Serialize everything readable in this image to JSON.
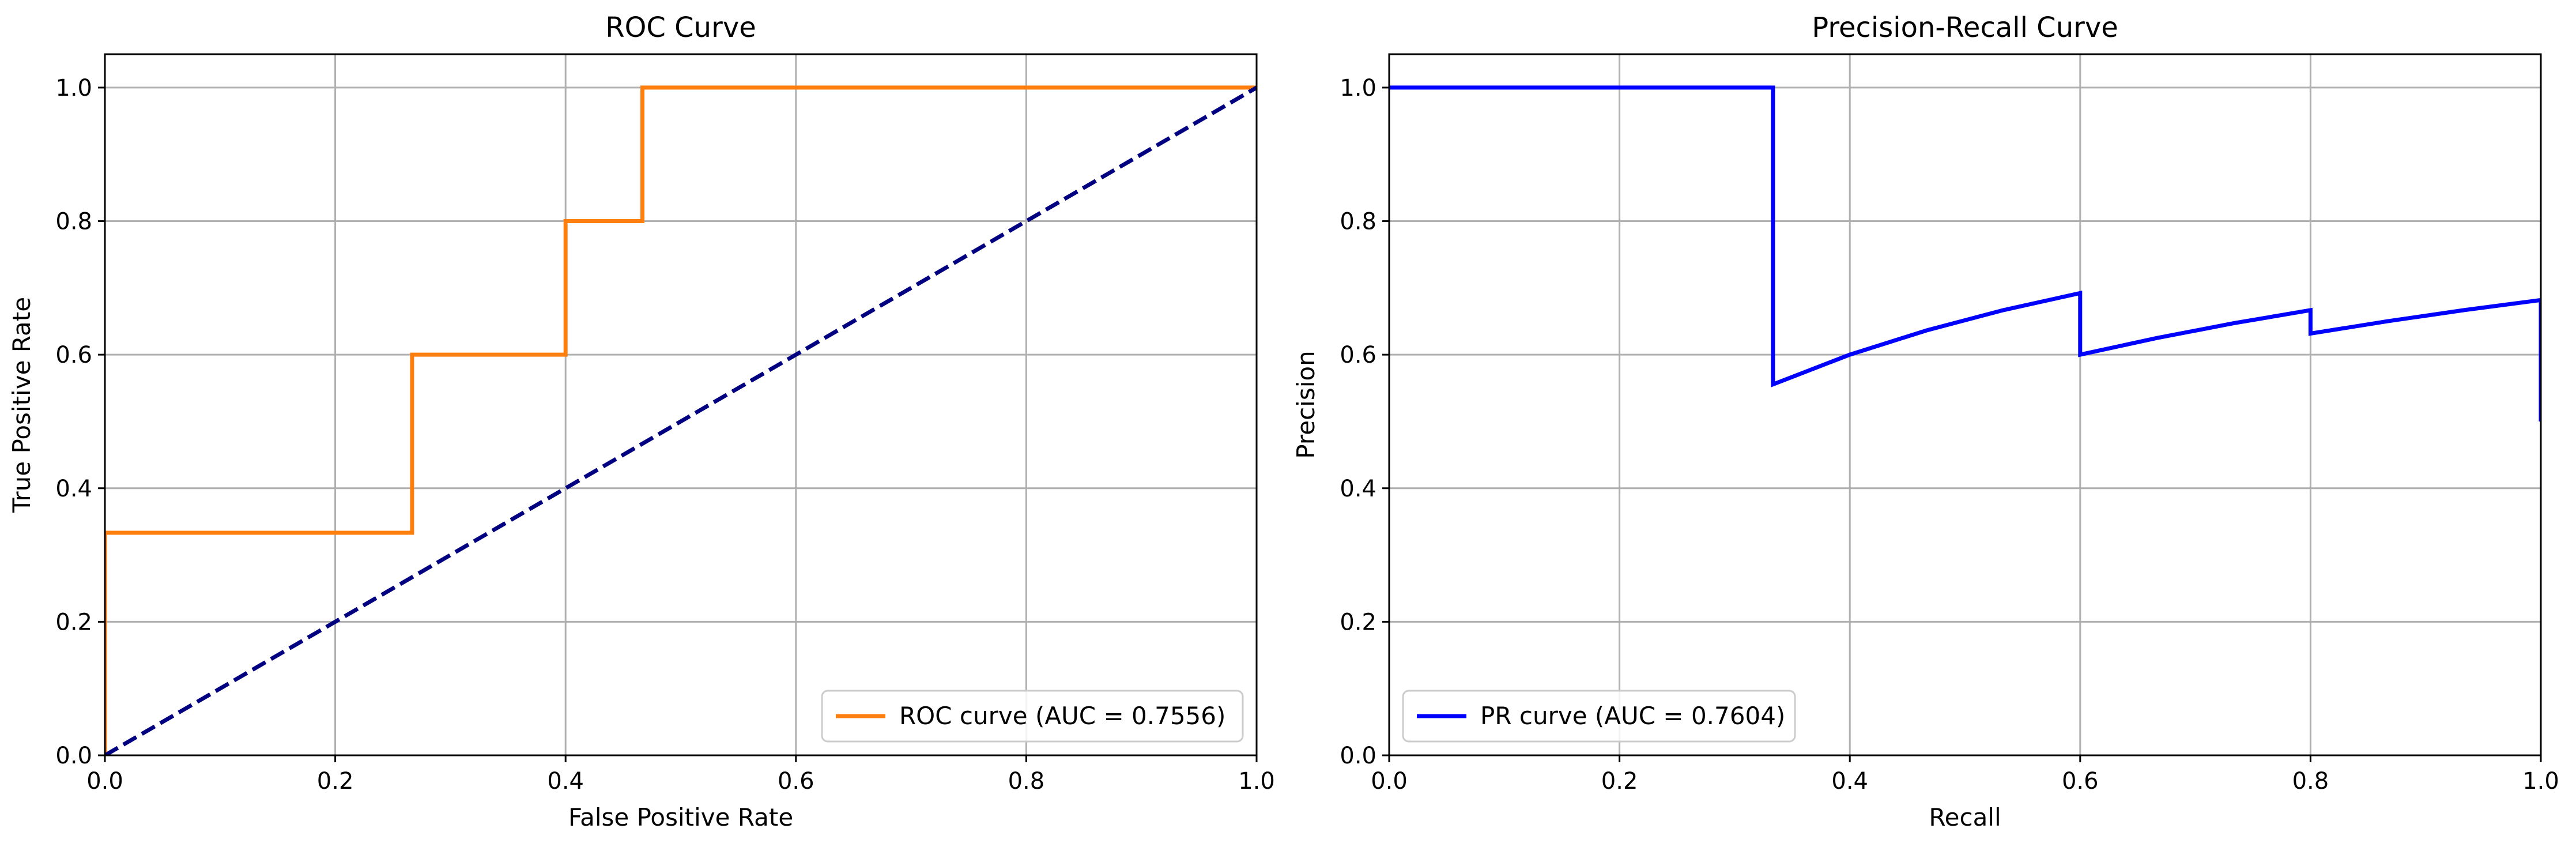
{
  "chart_data": [
    {
      "type": "line",
      "title": "ROC Curve",
      "xlabel": "False Positive Rate",
      "ylabel": "True Positive Rate",
      "xlim": [
        0,
        1
      ],
      "ylim": [
        0,
        1.05
      ],
      "xticks": [
        "0.0",
        "0.2",
        "0.4",
        "0.6",
        "0.8",
        "1.0"
      ],
      "yticks": [
        "0.0",
        "0.2",
        "0.4",
        "0.6",
        "0.8",
        "1.0"
      ],
      "grid": true,
      "legend_position": "lower-right",
      "series": [
        {
          "name": "ROC curve (AUC = 0.7556)",
          "color": "#ff7f0e",
          "style": "solid",
          "x": [
            0.0,
            0.0,
            0.0,
            0.2667,
            0.2667,
            0.4,
            0.4,
            0.4667,
            0.4667,
            1.0
          ],
          "y": [
            0.0,
            0.0,
            0.3333,
            0.3333,
            0.6,
            0.6,
            0.8,
            0.8,
            1.0,
            1.0
          ]
        },
        {
          "color": "#000080",
          "style": "dashed",
          "x": [
            0,
            1
          ],
          "y": [
            0,
            1
          ]
        }
      ]
    },
    {
      "type": "line",
      "title": "Precision-Recall Curve",
      "xlabel": "Recall",
      "ylabel": "Precision",
      "xlim": [
        0,
        1
      ],
      "ylim": [
        0,
        1.05
      ],
      "xticks": [
        "0.0",
        "0.2",
        "0.4",
        "0.6",
        "0.8",
        "1.0"
      ],
      "yticks": [
        "0.0",
        "0.2",
        "0.4",
        "0.6",
        "0.8",
        "1.0"
      ],
      "grid": true,
      "legend_position": "lower-left",
      "series": [
        {
          "name": "PR curve (AUC = 0.7604)",
          "color": "#0000ff",
          "style": "solid",
          "x": [
            0.0,
            0.3333,
            0.3333,
            0.4,
            0.4667,
            0.5333,
            0.6,
            0.6,
            0.6667,
            0.7333,
            0.8,
            0.8,
            0.8667,
            0.9333,
            1.0,
            1.0
          ],
          "y": [
            1.0,
            1.0,
            0.5556,
            0.6,
            0.6364,
            0.6667,
            0.6923,
            0.6,
            0.625,
            0.6471,
            0.6667,
            0.6316,
            0.65,
            0.6667,
            0.6818,
            0.5
          ]
        }
      ]
    }
  ]
}
